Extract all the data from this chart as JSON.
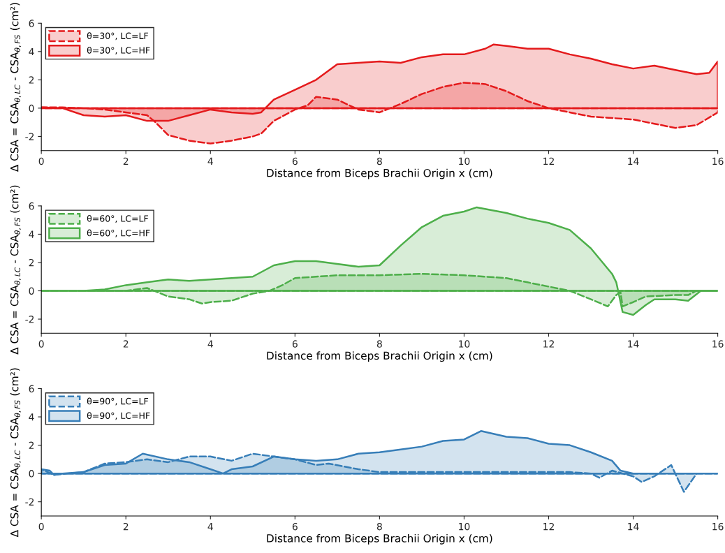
{
  "chart_data": [
    {
      "type": "area",
      "xlabel": "Distance from Biceps Brachii Origin x (cm)",
      "ylabel": "Δ CSA = CSA$_{θ,LC}$ - CSA$_{θ,FS}$ (cm²)",
      "xlim": [
        0,
        16
      ],
      "xticks": [
        0,
        2,
        4,
        6,
        8,
        10,
        12,
        14,
        16
      ],
      "ylim": [
        -3,
        6
      ],
      "yticks": [
        -2,
        0,
        2,
        4,
        6
      ],
      "legend": "top left",
      "series": [
        {
          "name": "θ=30°, LC=LF",
          "color": "#e41a1c",
          "line_style": "dashed",
          "x": [
            0,
            0.5,
            1,
            1.5,
            2,
            2.5,
            2.7,
            3,
            3.5,
            4,
            4.5,
            5,
            5.2,
            5.5,
            6,
            6.3,
            6.5,
            7,
            7.5,
            8,
            8.5,
            9,
            9.5,
            10,
            10.5,
            11,
            11.5,
            12,
            12.5,
            13,
            13.5,
            14,
            14.5,
            15,
            15.5,
            16
          ],
          "values": [
            0.05,
            0.05,
            0,
            -0.1,
            -0.3,
            -0.5,
            -1.0,
            -1.9,
            -2.3,
            -2.5,
            -2.3,
            -2.0,
            -1.8,
            -0.9,
            -0.1,
            0.2,
            0.8,
            0.6,
            -0.1,
            -0.3,
            0.3,
            1.0,
            1.5,
            1.8,
            1.7,
            1.2,
            0.5,
            0,
            -0.3,
            -0.6,
            -0.7,
            -0.8,
            -1.1,
            -1.4,
            -1.2,
            -0.3
          ]
        },
        {
          "name": "θ=30°, LC=HF",
          "color": "#e41a1c",
          "line_style": "solid",
          "x": [
            0,
            0.5,
            1,
            1.5,
            2,
            2.5,
            3,
            3.5,
            4,
            4.5,
            5,
            5.2,
            5.5,
            6,
            6.5,
            7,
            7.5,
            8,
            8.5,
            9,
            9.5,
            10,
            10.5,
            10.7,
            11,
            11.5,
            12,
            12.5,
            13,
            13.5,
            14,
            14.5,
            15,
            15.5,
            15.8,
            16
          ],
          "values": [
            0.05,
            0,
            -0.5,
            -0.6,
            -0.5,
            -0.9,
            -0.9,
            -0.5,
            -0.1,
            -0.3,
            -0.4,
            -0.3,
            0.6,
            1.3,
            2.0,
            3.1,
            3.2,
            3.3,
            3.2,
            3.6,
            3.8,
            3.8,
            4.2,
            4.5,
            4.4,
            4.2,
            4.2,
            3.8,
            3.5,
            3.1,
            2.8,
            3.0,
            2.7,
            2.4,
            2.5,
            3.3
          ]
        }
      ]
    },
    {
      "type": "area",
      "xlabel": "Distance from Biceps Brachii Origin x (cm)",
      "ylabel": "Δ CSA = CSA$_{θ,LC}$ - CSA$_{θ,FS}$ (cm²)",
      "xlim": [
        0,
        16
      ],
      "xticks": [
        0,
        2,
        4,
        6,
        8,
        10,
        12,
        14,
        16
      ],
      "ylim": [
        -3,
        6
      ],
      "yticks": [
        -2,
        0,
        2,
        4,
        6
      ],
      "legend": "top left",
      "series": [
        {
          "name": "θ=60°, LC=LF",
          "color": "#4daf4a",
          "line_style": "dashed",
          "x": [
            0,
            1,
            2,
            2.5,
            3,
            3.5,
            3.8,
            4,
            4.5,
            5,
            5.4,
            5.7,
            6,
            7,
            8,
            9,
            10,
            11,
            11.5,
            12,
            12.5,
            13,
            13.4,
            13.6,
            13.7,
            13.75,
            14,
            14.3,
            15,
            15.3,
            15.5,
            16
          ],
          "values": [
            0,
            0,
            0,
            0.2,
            -0.4,
            -0.6,
            -0.9,
            -0.8,
            -0.7,
            -0.2,
            0,
            0.4,
            0.9,
            1.1,
            1.1,
            1.2,
            1.1,
            0.9,
            0.6,
            0.3,
            0,
            -0.6,
            -1.1,
            -0.3,
            -0.1,
            -1.1,
            -0.8,
            -0.4,
            -0.3,
            -0.3,
            0,
            0
          ]
        },
        {
          "name": "θ=60°, LC=HF",
          "color": "#4daf4a",
          "line_style": "solid",
          "x": [
            0,
            1,
            1.5,
            2,
            2.5,
            3,
            3.5,
            4,
            4.5,
            5,
            5.5,
            6,
            6.5,
            7,
            7.5,
            8,
            8.5,
            9,
            9.5,
            10,
            10.3,
            11,
            11.5,
            12,
            12.5,
            13,
            13.5,
            13.6,
            13.75,
            14,
            14.3,
            14.5,
            15,
            15.3,
            15.6,
            16
          ],
          "values": [
            0,
            0,
            0.1,
            0.4,
            0.6,
            0.8,
            0.7,
            0.8,
            0.9,
            1.0,
            1.8,
            2.1,
            2.1,
            1.9,
            1.7,
            1.8,
            3.2,
            4.5,
            5.3,
            5.6,
            5.9,
            5.5,
            5.1,
            4.8,
            4.3,
            3.0,
            1.2,
            0.6,
            -1.5,
            -1.7,
            -1.0,
            -0.6,
            -0.6,
            -0.7,
            0,
            0
          ]
        }
      ]
    },
    {
      "type": "area",
      "xlabel": "Distance from Biceps Brachii Origin x (cm)",
      "ylabel": "Δ CSA = CSA$_{θ,LC}$ - CSA$_{θ,FS}$ (cm²)",
      "xlim": [
        0,
        16
      ],
      "xticks": [
        0,
        2,
        4,
        6,
        8,
        10,
        12,
        14,
        16
      ],
      "ylim": [
        -3,
        6
      ],
      "yticks": [
        -2,
        0,
        2,
        4,
        6
      ],
      "legend": "top left",
      "series": [
        {
          "name": "θ=90°, LC=LF",
          "color": "#377eb8",
          "line_style": "dashed",
          "x": [
            0,
            0.3,
            1,
            1.5,
            2,
            2.5,
            3,
            3.5,
            4,
            4.5,
            5,
            5.5,
            6,
            6.5,
            6.8,
            7.5,
            8,
            9,
            10,
            11,
            12,
            12.5,
            13,
            13.2,
            13.5,
            14,
            14.2,
            14.5,
            14.9,
            15.2,
            15.5,
            16
          ],
          "values": [
            0.3,
            -0.1,
            0.1,
            0.7,
            0.8,
            1.0,
            0.8,
            1.2,
            1.2,
            0.9,
            1.4,
            1.2,
            1.0,
            0.6,
            0.7,
            0.3,
            0.1,
            0.1,
            0.1,
            0.1,
            0.1,
            0.1,
            0,
            -0.3,
            0.2,
            -0.2,
            -0.6,
            -0.2,
            0.6,
            -1.3,
            0,
            0
          ]
        },
        {
          "name": "θ=90°, LC=HF",
          "color": "#377eb8",
          "line_style": "solid",
          "x": [
            0,
            0.2,
            0.3,
            0.5,
            1,
            1.5,
            2,
            2.4,
            3,
            3.5,
            4,
            4.3,
            4.5,
            5,
            5.5,
            6,
            6.5,
            7,
            7.5,
            8,
            8.5,
            9,
            9.5,
            10,
            10.4,
            11,
            11.5,
            12,
            12.5,
            13,
            13.5,
            13.7,
            14,
            16
          ],
          "values": [
            0.3,
            0.2,
            -0.1,
            0,
            0.1,
            0.6,
            0.7,
            1.4,
            1.0,
            0.8,
            0.3,
            0,
            0.3,
            0.5,
            1.2,
            1.0,
            0.9,
            1.0,
            1.4,
            1.5,
            1.7,
            1.9,
            2.3,
            2.4,
            3.0,
            2.6,
            2.5,
            2.1,
            2.0,
            1.5,
            0.9,
            0.2,
            0,
            0
          ]
        }
      ]
    }
  ]
}
